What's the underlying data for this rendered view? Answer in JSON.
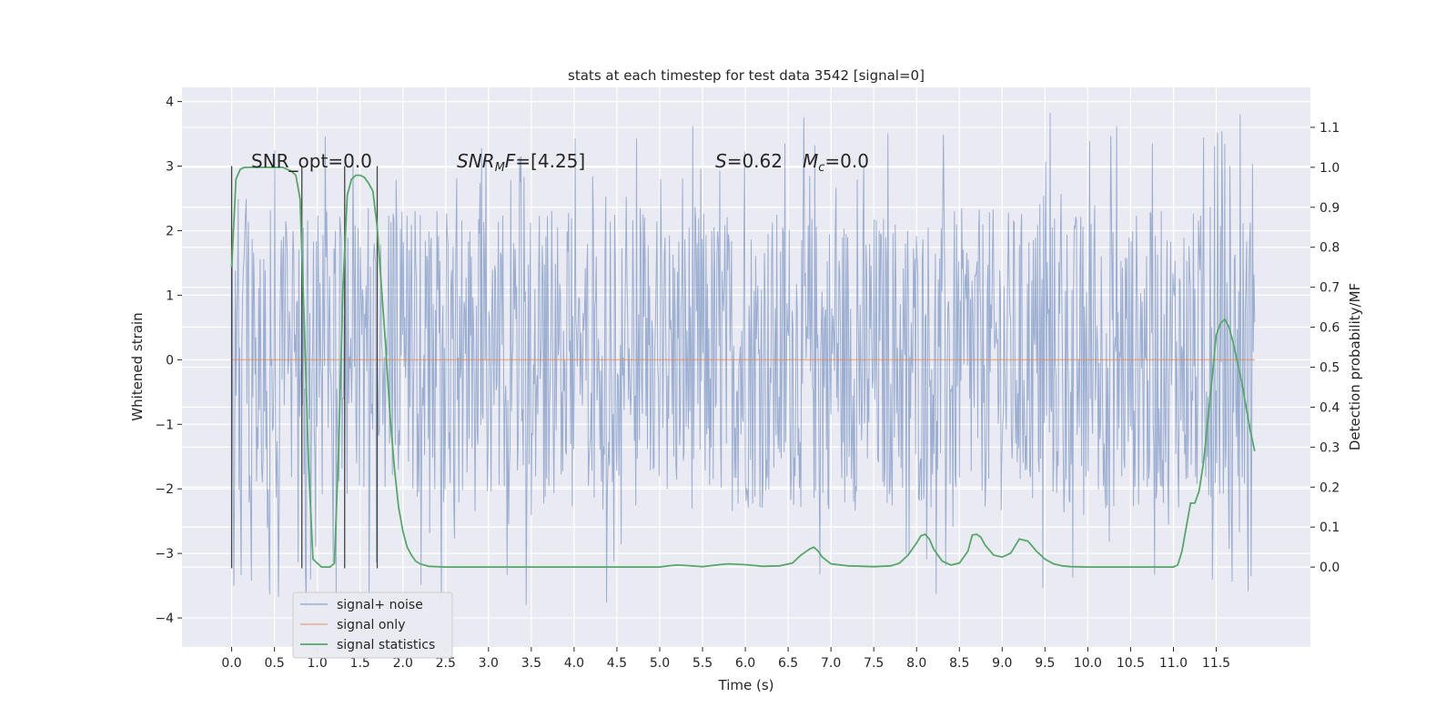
{
  "chart_data": {
    "type": "line",
    "title": "stats at each timestep for test data 3542 [signal=0]",
    "xlabel": "Time (s)",
    "ylabel_left": "Whitened strain",
    "ylabel_right": "Detection probability/MF",
    "xlim": [
      -0.58,
      12.6
    ],
    "ylim_left": [
      -4.45,
      4.22
    ],
    "ylim_right": [
      -0.2,
      1.2
    ],
    "grid": true,
    "legend_position": "lower-left",
    "x_ticks": [
      0.0,
      0.5,
      1.0,
      1.5,
      2.0,
      2.5,
      3.0,
      3.5,
      4.0,
      4.5,
      5.0,
      5.5,
      6.0,
      6.5,
      7.0,
      7.5,
      8.0,
      8.5,
      9.0,
      9.5,
      10.0,
      10.5,
      11.0,
      11.5
    ],
    "x_tick_labels": [
      "0.0",
      "0.5",
      "1.0",
      "1.5",
      "2.0",
      "2.5",
      "3.0",
      "3.5",
      "4.0",
      "4.5",
      "5.0",
      "5.5",
      "6.0",
      "6.5",
      "7.0",
      "7.5",
      "8.0",
      "8.5",
      "9.0",
      "9.5",
      "10.0",
      "10.5",
      "11.0",
      "11.5"
    ],
    "y_left_ticks": [
      -4,
      -3,
      -2,
      -1,
      0,
      1,
      2,
      3,
      4
    ],
    "y_left_tick_labels": [
      "−4",
      "−3",
      "−2",
      "−1",
      "0",
      "1",
      "2",
      "3",
      "4"
    ],
    "y_right_ticks": [
      0.0,
      0.1,
      0.2,
      0.3,
      0.4,
      0.5,
      0.6,
      0.7,
      0.8,
      0.9,
      1.0,
      1.1
    ],
    "y_right_tick_labels": [
      "0.0",
      "0.1",
      "0.2",
      "0.3",
      "0.4",
      "0.5",
      "0.6",
      "0.7",
      "0.8",
      "0.9",
      "1.0",
      "1.1"
    ],
    "annotations": {
      "snr_opt": "SNR_opt=0.0",
      "snr_mf_label": "SNR",
      "snr_mf_sub": "M",
      "snr_mf_label2": "F",
      "snr_mf_value": "=[4.25]",
      "s_label": "S",
      "s_value": "=0.62",
      "mc_label": "M",
      "mc_sub": "c",
      "mc_value": "=0.0"
    },
    "series": [
      {
        "name": "signal+ noise",
        "color": "#4c72b0",
        "kind": "noise",
        "x_range": [
          0.0,
          11.95
        ],
        "envelope": 2.35,
        "peak_max": 3.9,
        "trough_min": -4.05
      },
      {
        "name": "signal only",
        "color": "#dd8452",
        "kind": "constant",
        "x": [
          0.0,
          11.95
        ],
        "y": [
          0.0,
          0.0
        ]
      },
      {
        "name": "signal statistics",
        "color": "#55a868",
        "axis": "right",
        "x": [
          0.0,
          0.05,
          0.1,
          0.15,
          0.2,
          0.3,
          0.4,
          0.5,
          0.6,
          0.7,
          0.75,
          0.8,
          0.85,
          0.9,
          0.95,
          1.0,
          1.05,
          1.1,
          1.15,
          1.2,
          1.25,
          1.3,
          1.35,
          1.4,
          1.45,
          1.5,
          1.55,
          1.6,
          1.65,
          1.7,
          1.75,
          1.8,
          1.85,
          1.9,
          1.95,
          2.0,
          2.05,
          2.1,
          2.15,
          2.2,
          2.3,
          2.5,
          3.0,
          3.5,
          4.0,
          4.5,
          5.0,
          5.1,
          5.2,
          5.3,
          5.5,
          5.7,
          5.8,
          6.0,
          6.2,
          6.4,
          6.55,
          6.65,
          6.75,
          6.8,
          6.85,
          6.9,
          7.0,
          7.2,
          7.5,
          7.7,
          7.8,
          7.9,
          8.0,
          8.05,
          8.1,
          8.15,
          8.2,
          8.3,
          8.4,
          8.5,
          8.6,
          8.65,
          8.7,
          8.75,
          8.8,
          8.9,
          9.0,
          9.1,
          9.2,
          9.3,
          9.4,
          9.5,
          9.6,
          9.7,
          9.8,
          10.0,
          10.5,
          11.0,
          11.05,
          11.1,
          11.15,
          11.2,
          11.25,
          11.3,
          11.35,
          11.4,
          11.45,
          11.5,
          11.55,
          11.6,
          11.65,
          11.7,
          11.75,
          11.8,
          11.85,
          11.9,
          11.95
        ],
        "y": [
          0.75,
          0.97,
          0.995,
          1.0,
          1.0,
          1.0,
          1.0,
          1.0,
          1.0,
          0.99,
          0.98,
          0.92,
          0.6,
          0.25,
          0.02,
          0.01,
          0.0,
          0.0,
          0.0,
          0.01,
          0.3,
          0.7,
          0.93,
          0.97,
          0.98,
          0.98,
          0.975,
          0.96,
          0.94,
          0.85,
          0.7,
          0.55,
          0.38,
          0.25,
          0.15,
          0.09,
          0.05,
          0.03,
          0.015,
          0.008,
          0.002,
          0.0,
          0.0,
          0.0,
          0.0,
          0.0,
          0.0,
          0.003,
          0.005,
          0.004,
          0.001,
          0.006,
          0.008,
          0.006,
          0.002,
          0.003,
          0.01,
          0.03,
          0.045,
          0.05,
          0.04,
          0.025,
          0.008,
          0.003,
          0.001,
          0.003,
          0.01,
          0.03,
          0.06,
          0.078,
          0.082,
          0.07,
          0.045,
          0.015,
          0.005,
          0.01,
          0.04,
          0.08,
          0.082,
          0.075,
          0.055,
          0.03,
          0.025,
          0.035,
          0.07,
          0.065,
          0.04,
          0.02,
          0.008,
          0.003,
          0.001,
          0.0,
          0.0,
          0.0,
          0.005,
          0.04,
          0.1,
          0.16,
          0.16,
          0.19,
          0.26,
          0.36,
          0.47,
          0.58,
          0.61,
          0.62,
          0.6,
          0.56,
          0.51,
          0.46,
          0.4,
          0.34,
          0.29
        ]
      }
    ],
    "vertical_markers": {
      "x": [
        0.0,
        0.82,
        1.32,
        1.7
      ],
      "y_range": [
        -3.23,
        3.0
      ]
    }
  }
}
